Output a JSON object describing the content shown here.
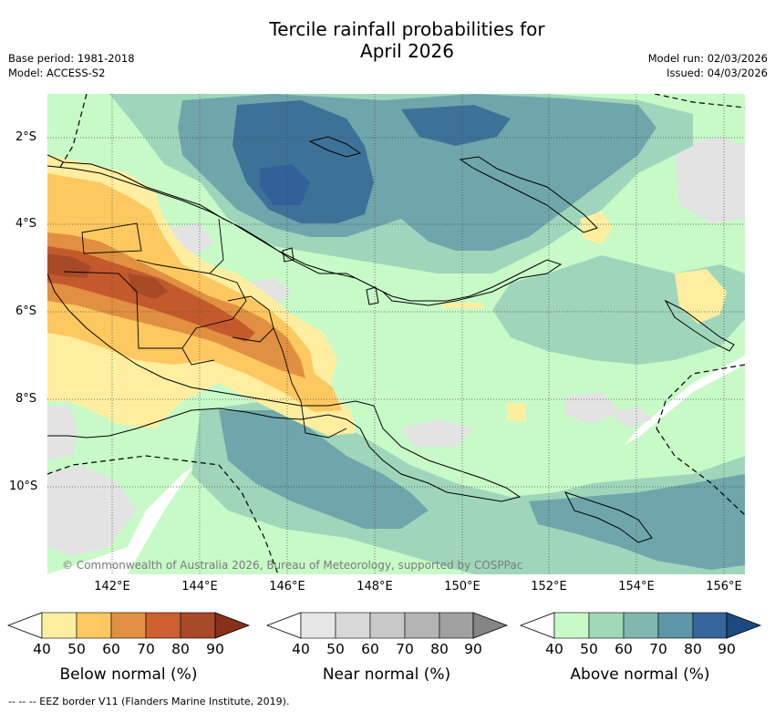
{
  "title_line1": "Tercile rainfall probabilities for",
  "title_line2": "April 2026",
  "base_period": "Base period: 1981-2018",
  "model": "Model: ACCESS-S2",
  "model_run": "Model run: 02/03/2026",
  "issued": "Issued: 04/03/2026",
  "lat_labels": [
    "2°S",
    "4°S",
    "6°S",
    "8°S",
    "10°S"
  ],
  "lon_labels": [
    "142°E",
    "144°E",
    "146°E",
    "148°E",
    "150°E",
    "152°E",
    "154°E",
    "156°E"
  ],
  "copyright": "© Commonwealth of Australia 2026, Bureau of Meteorology, supported by COSPPac",
  "colorbars": [
    {
      "title": "Below normal (%)",
      "ticks": [
        "40",
        "50",
        "60",
        "70",
        "80",
        "90"
      ],
      "colors": [
        "#ffeea0",
        "#fdc860",
        "#e09040",
        "#cc6030",
        "#a84a28",
        "#883018"
      ]
    },
    {
      "title": "Near normal (%)",
      "ticks": [
        "40",
        "50",
        "60",
        "70",
        "80",
        "90"
      ],
      "colors": [
        "#e6e6e6",
        "#d8d8d8",
        "#c8c8c8",
        "#b4b4b4",
        "#a0a0a0",
        "#858585"
      ]
    },
    {
      "title": "Above normal (%)",
      "ticks": [
        "40",
        "50",
        "60",
        "70",
        "80",
        "90"
      ],
      "colors": [
        "#c8fac8",
        "#a0d8b8",
        "#80b8b0",
        "#5c96a8",
        "#35659a",
        "#1c4a80"
      ]
    }
  ],
  "footnote": "-- -- -- EEZ border V11 (Flanders Marine Institute, 2019).",
  "colors": {
    "above_50": "#c8fac8",
    "above_60": "#9fd6bb",
    "above_70": "#6fa6ab",
    "above_80": "#3d7298",
    "below_50": "#ffeea0",
    "below_60": "#fdc860",
    "below_70": "#e09040",
    "below_80": "#c45a2c",
    "near_50": "#e3e3e3"
  }
}
